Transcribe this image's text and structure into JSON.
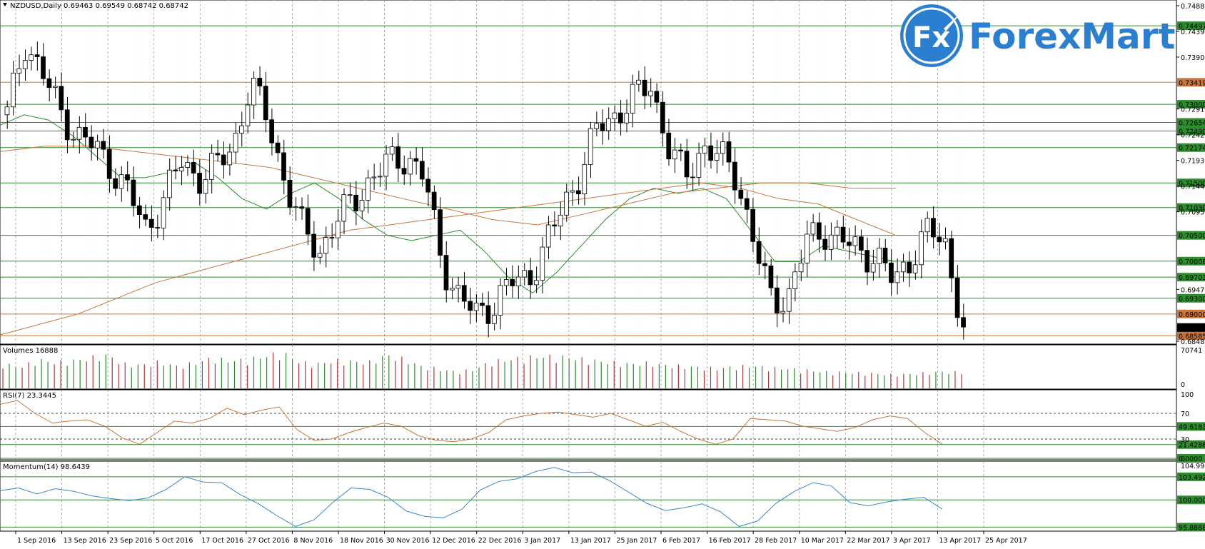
{
  "header": {
    "symbol_info": "NZDUSD,Daily  0.69463 0.69549 0.68742 0.68742"
  },
  "logo": {
    "icon_text": "Fx",
    "brand_text": "ForexMart",
    "brand_color": "#2a7fd0"
  },
  "colors": {
    "candle": "#000000",
    "ma_fast": "#2e8b2e",
    "ma_slow": "#c8763c",
    "support_line": "#2e8b2e",
    "resistance_line": "#c8763c",
    "vol_up": "#2e8b2e",
    "vol_down": "#b03a3a",
    "rsi": "#c8763c",
    "momentum": "#3b86c8",
    "grid": "#999999"
  },
  "x_axis": {
    "labels": [
      "1 Sep 2016",
      "13 Sep 2016",
      "23 Sep 2016",
      "5 Oct 2016",
      "17 Oct 2016",
      "27 Oct 2016",
      "8 Nov 2016",
      "18 Nov 2016",
      "30 Nov 2016",
      "12 Dec 2016",
      "22 Dec 2016",
      "3 Jan 2017",
      "13 Jan 2017",
      "25 Jan 2017",
      "6 Feb 2017",
      "16 Feb 2017",
      "28 Feb 2017",
      "10 Mar 2017",
      "22 Mar 2017",
      "3 Apr 2017",
      "13 Apr 2017",
      "25 Apr 2017"
    ]
  },
  "price_panel": {
    "scale_labels": [
      "0.74880",
      "0.74390",
      "0.73900",
      "0.72910",
      "0.72420",
      "0.71930",
      "0.71440",
      "0.70950",
      "0.69470",
      "0.68480"
    ],
    "horizontal_levels": [
      {
        "price": "0.74497",
        "kind": "support"
      },
      {
        "price": "0.73419",
        "kind": "resistance"
      },
      {
        "price": "0.73000",
        "kind": "support"
      },
      {
        "price": "0.72654",
        "kind": "support"
      },
      {
        "price": "0.72490",
        "kind": "support"
      },
      {
        "price": "0.72174",
        "kind": "support"
      },
      {
        "price": "0.71500",
        "kind": "support"
      },
      {
        "price": "0.71030",
        "kind": "support"
      },
      {
        "price": "0.70500",
        "kind": "support"
      },
      {
        "price": "0.70008",
        "kind": "support"
      },
      {
        "price": "0.69703",
        "kind": "support"
      },
      {
        "price": "0.69300",
        "kind": "support"
      },
      {
        "price": "0.69000",
        "kind": "resistance"
      },
      {
        "price": "0.68585",
        "kind": "resistance"
      }
    ],
    "current_price": "0.68742"
  },
  "volume_panel": {
    "title": "Volumes 16888",
    "scale_labels": [
      "70741",
      "0"
    ]
  },
  "rsi_panel": {
    "title": "RSI(7) 23.3445",
    "scale_labels": [
      "100",
      "70",
      "30",
      "0"
    ],
    "levels": [
      "49.6183",
      "21.4286",
      "0.0000"
    ]
  },
  "momentum_panel": {
    "title": "Momentum(14) 98.6439",
    "scale_labels": [
      "104.9985",
      "103.4924",
      "100.0000",
      "95.8868"
    ]
  },
  "chart_data": {
    "type": "candlestick",
    "title": "NZDUSD,Daily",
    "ylim": [
      0.6848,
      0.7488
    ],
    "x_range": [
      "1 Sep 2016",
      "25 Apr 2017"
    ],
    "closes_sampled": [
      0.728,
      0.742,
      0.736,
      0.729,
      0.724,
      0.722,
      0.718,
      0.713,
      0.706,
      0.712,
      0.719,
      0.716,
      0.718,
      0.722,
      0.734,
      0.727,
      0.715,
      0.706,
      0.702,
      0.708,
      0.712,
      0.716,
      0.719,
      0.72,
      0.716,
      0.7,
      0.693,
      0.69,
      0.692,
      0.696,
      0.697,
      0.703,
      0.711,
      0.717,
      0.726,
      0.728,
      0.731,
      0.734,
      0.722,
      0.716,
      0.722,
      0.72,
      0.716,
      0.703,
      0.692,
      0.694,
      0.704,
      0.706,
      0.704,
      0.702,
      0.701,
      0.696,
      0.701,
      0.706,
      0.703,
      0.687
    ],
    "ma_fast_sampled": [
      0.726,
      0.728,
      0.727,
      0.724,
      0.72,
      0.716,
      0.716,
      0.717,
      0.719,
      0.716,
      0.712,
      0.71,
      0.713,
      0.715,
      0.712,
      0.708,
      0.705,
      0.704,
      0.705,
      0.706,
      0.702,
      0.697,
      0.694,
      0.698,
      0.703,
      0.708,
      0.712,
      0.714,
      0.713,
      0.714,
      0.712,
      0.706,
      0.7,
      0.7,
      0.703,
      0.702,
      0.701,
      0.7
    ],
    "ma_slow_sampled": [
      0.721,
      0.722,
      0.722,
      0.721,
      0.72,
      0.719,
      0.718,
      0.716,
      0.714,
      0.712,
      0.71,
      0.708,
      0.707,
      0.709,
      0.711,
      0.713,
      0.714,
      0.715,
      0.715,
      0.714,
      0.714
    ],
    "ma_long_sampled": [
      0.686,
      0.688,
      0.69,
      0.693,
      0.696,
      0.698,
      0.7,
      0.702,
      0.704,
      0.706,
      0.707,
      0.708,
      0.709,
      0.71,
      0.711,
      0.712,
      0.713,
      0.714,
      0.715,
      0.714,
      0.712,
      0.711,
      0.708,
      0.705
    ],
    "volumes_sampled": [
      45,
      38,
      52,
      47,
      50,
      55,
      60,
      44,
      42,
      48,
      40,
      46,
      55,
      50,
      52,
      58,
      65,
      48,
      44,
      50,
      49,
      47,
      60,
      53,
      40,
      35,
      30,
      34,
      48,
      52,
      56,
      58,
      57,
      54,
      50,
      47,
      44,
      46,
      42,
      40,
      38,
      36,
      39,
      41,
      37,
      36,
      33,
      30,
      29,
      28,
      27,
      25,
      26,
      28,
      30,
      29
    ],
    "rsi_sampled": [
      84,
      90,
      70,
      55,
      58,
      60,
      50,
      32,
      22,
      40,
      58,
      55,
      62,
      78,
      68,
      75,
      80,
      45,
      28,
      30,
      40,
      48,
      55,
      50,
      35,
      28,
      26,
      30,
      40,
      60,
      66,
      70,
      72,
      68,
      64,
      70,
      60,
      50,
      56,
      42,
      30,
      22,
      30,
      62,
      60,
      58,
      50,
      46,
      42,
      48,
      60,
      66,
      62,
      40,
      22
    ],
    "momentum_sampled": [
      101.4,
      101.8,
      100.9,
      101.7,
      101.3,
      100.6,
      100.2,
      99.9,
      100.3,
      101.6,
      103.5,
      102.7,
      102.6,
      100.8,
      99.4,
      97.6,
      96.0,
      97.0,
      99.6,
      101.8,
      101.6,
      100.4,
      98.3,
      97.5,
      97.3,
      98.6,
      101.5,
      102.8,
      103.2,
      104.3,
      104.9,
      104.1,
      104.2,
      102.9,
      101.2,
      99.5,
      98.4,
      98.8,
      99.4,
      98.2,
      96.0,
      96.8,
      99.5,
      101.3,
      102.6,
      102.1,
      99.6,
      99.1,
      99.7,
      100.1,
      100.4,
      98.6
    ]
  }
}
